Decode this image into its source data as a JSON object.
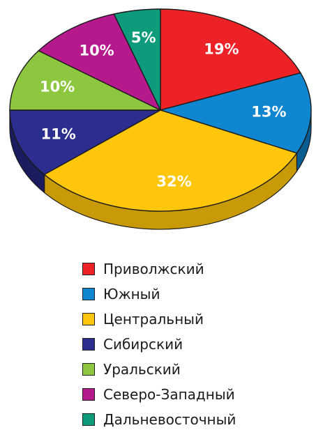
{
  "chart_data": {
    "type": "pie",
    "title": "",
    "slices": [
      {
        "label": "Приволжский",
        "value": 19,
        "value_label": "19%",
        "color": "#ec2227",
        "side_color": "#a8151a"
      },
      {
        "label": "Южный",
        "value": 13,
        "value_label": "13%",
        "color": "#0f86cf",
        "side_color": "#0a5d90"
      },
      {
        "label": "Центральный",
        "value": 32,
        "value_label": "32%",
        "color": "#ffc60b",
        "side_color": "#c89a08"
      },
      {
        "label": "Сибирский",
        "value": 11,
        "value_label": "11%",
        "color": "#2b2d8f",
        "side_color": "#1a1c60"
      },
      {
        "label": "Уральский",
        "value": 10,
        "value_label": "10%",
        "color": "#8dc63f",
        "side_color": "#5f8a2a"
      },
      {
        "label": "Северо-Западный",
        "value": 10,
        "value_label": "10%",
        "color": "#b5198c",
        "side_color": "#7d1062"
      },
      {
        "label": "Дальневосточный",
        "value": 5,
        "value_label": "5%",
        "color": "#0e9b7c",
        "side_color": "#0a6b56"
      }
    ],
    "legend_position": "bottom"
  }
}
